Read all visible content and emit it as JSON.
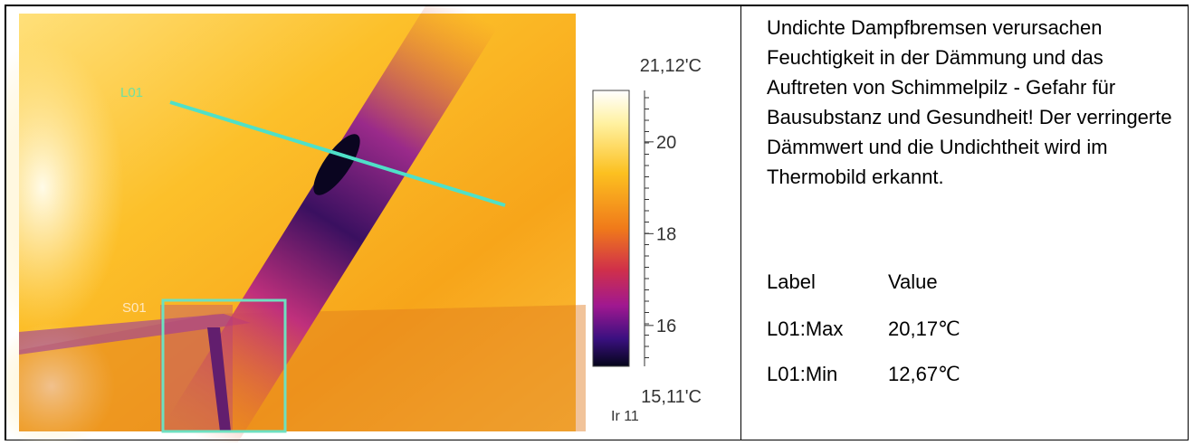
{
  "image": {
    "line_label": "L01",
    "spot_label": "S01",
    "scale": {
      "max": {
        "value": 21.12,
        "label": "21,12'C"
      },
      "min": {
        "value": 15.11,
        "label": "15,11'C"
      },
      "ticks": [
        16,
        18,
        20
      ],
      "palette_label": "Ir 11"
    }
  },
  "description": "Undichte Dampfbremsen verursachen Feuchtigkeit in der Dämmung und das Auftreten von Schimmelpilz - Gefahr für Bausubstanz und Gesundheit! Der verringerte Dämmwert und die Undichtheit wird im Thermobild erkannt.",
  "table": {
    "header": [
      "Label",
      "Value"
    ],
    "rows": [
      [
        "L01:Max",
        "20,17℃"
      ],
      [
        "L01:Min",
        "12,67℃"
      ]
    ]
  }
}
